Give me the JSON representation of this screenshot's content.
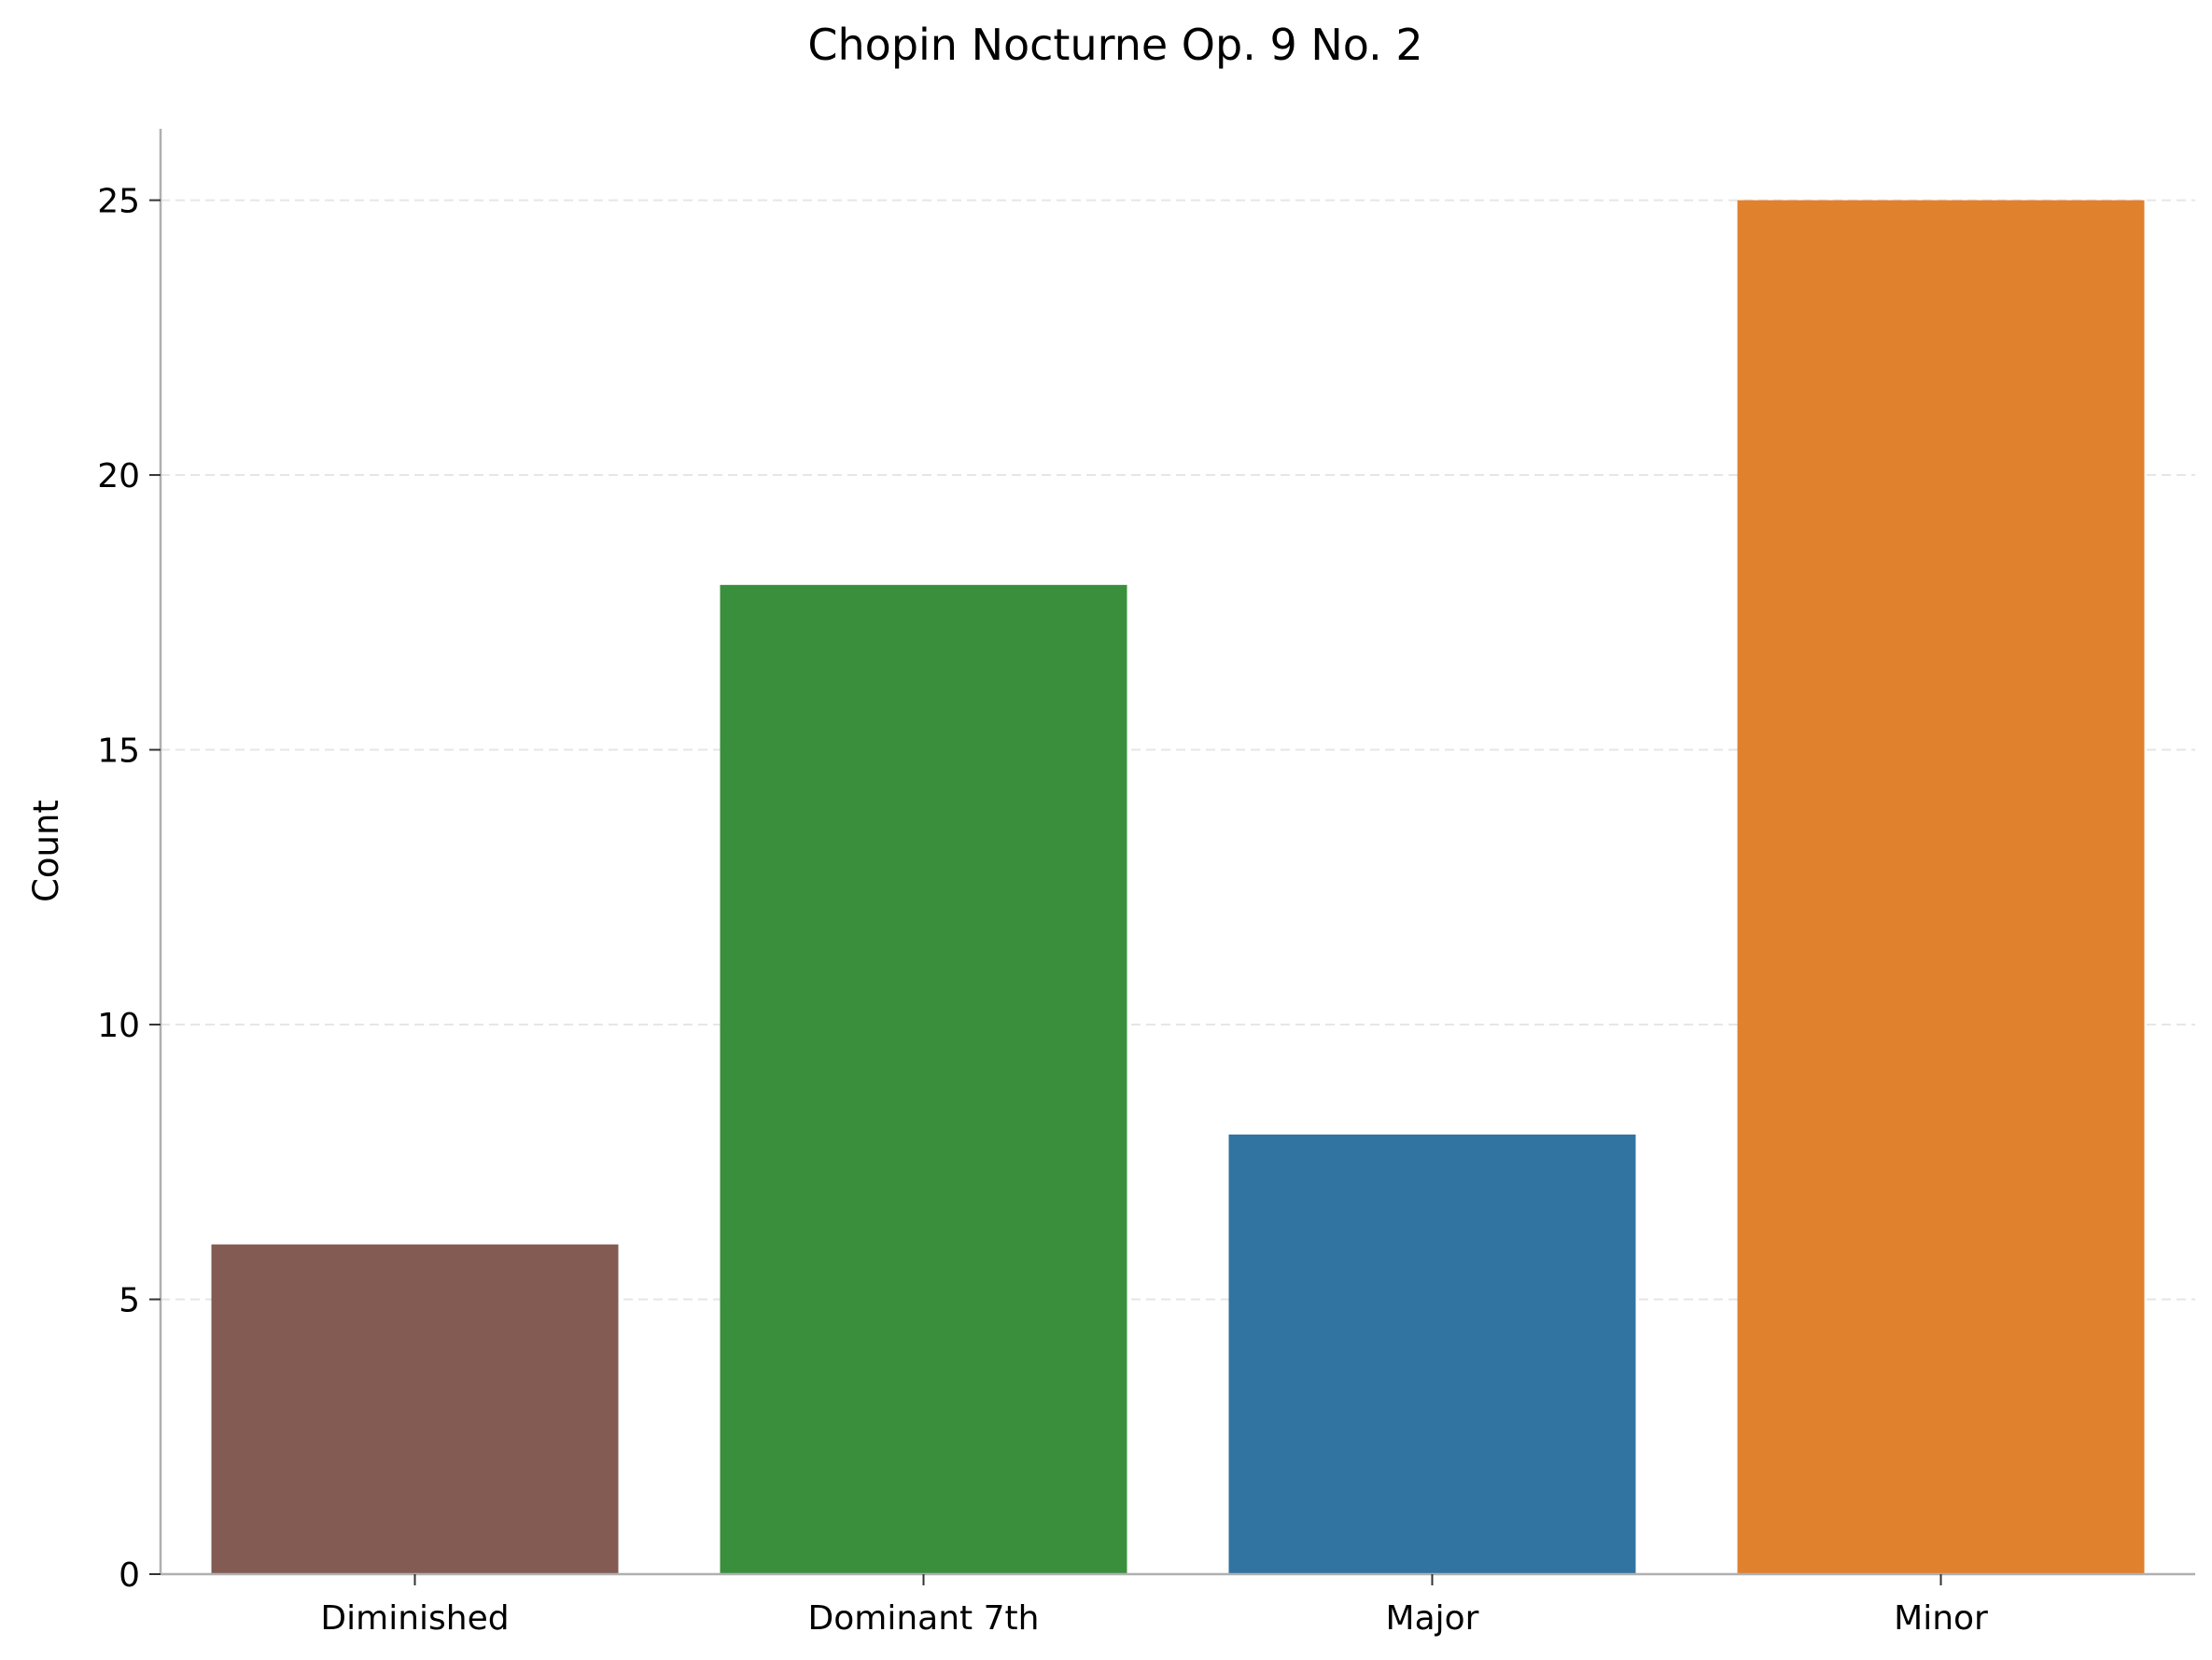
{
  "chart_data": {
    "type": "bar",
    "title": "Chopin Nocturne Op. 9 No. 2",
    "xlabel": "",
    "ylabel": "Count",
    "categories": [
      "Diminished",
      "Dominant 7th",
      "Major",
      "Minor"
    ],
    "values": [
      6,
      18,
      8,
      25
    ],
    "colors": [
      "#835b53",
      "#3a8f3c",
      "#3173a1",
      "#e0812e"
    ],
    "ylim": [
      0,
      26.3
    ],
    "yticks": [
      0,
      5,
      10,
      15,
      20,
      25
    ],
    "grid": "y-dashed",
    "legend": "none"
  }
}
